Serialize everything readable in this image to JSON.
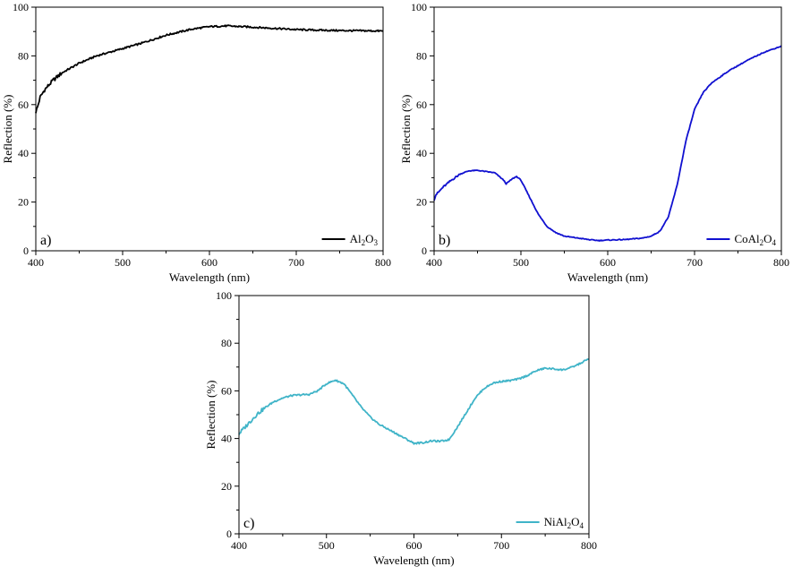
{
  "chart_data": [
    {
      "type": "line",
      "panel_label": "a)",
      "xlabel": "Wavelength (nm)",
      "ylabel": "Reflection (%)",
      "xlim": [
        400,
        800
      ],
      "ylim": [
        0,
        100
      ],
      "xticks": [
        400,
        500,
        600,
        700,
        800
      ],
      "yticks": [
        0,
        20,
        40,
        60,
        80,
        100
      ],
      "grid": false,
      "legend_position": "bottom-right",
      "series": [
        {
          "name_parts": [
            "Al",
            "2",
            "O",
            "3"
          ],
          "color": "#000000",
          "x": [
            400,
            402,
            405,
            410,
            420,
            430,
            450,
            470,
            500,
            520,
            550,
            580,
            600,
            620,
            650,
            680,
            700,
            720,
            750,
            780,
            800
          ],
          "y": [
            57,
            59,
            63,
            66,
            70,
            73,
            77,
            80,
            83,
            85,
            88.5,
            91,
            92,
            92.3,
            91.8,
            91.2,
            90.8,
            90.6,
            90.4,
            90.3,
            90.2
          ]
        }
      ]
    },
    {
      "type": "line",
      "panel_label": "b)",
      "xlabel": "Wavelength (nm)",
      "ylabel": "Reflection (%)",
      "xlim": [
        400,
        800
      ],
      "ylim": [
        0,
        100
      ],
      "xticks": [
        400,
        500,
        600,
        700,
        800
      ],
      "yticks": [
        0,
        20,
        40,
        60,
        80,
        100
      ],
      "grid": false,
      "legend_position": "bottom-right",
      "series": [
        {
          "name_parts": [
            "CoAl",
            "2",
            "O",
            "4"
          ],
          "color": "#1010d0",
          "x": [
            400,
            402,
            405,
            410,
            420,
            430,
            440,
            450,
            460,
            470,
            480,
            483,
            490,
            495,
            500,
            510,
            520,
            530,
            540,
            550,
            560,
            570,
            580,
            590,
            600,
            620,
            640,
            650,
            660,
            670,
            680,
            690,
            700,
            710,
            720,
            740,
            760,
            780,
            800
          ],
          "y": [
            21,
            23,
            24,
            26,
            29,
            31.5,
            32.8,
            33,
            32.5,
            32,
            29,
            27.5,
            29.5,
            30.5,
            29,
            22,
            15,
            10,
            7.5,
            6,
            5.5,
            5,
            4.5,
            4.2,
            4.4,
            4.6,
            5.2,
            6,
            8,
            14,
            27,
            45,
            58,
            65,
            69,
            74,
            78,
            81.5,
            84
          ]
        }
      ]
    },
    {
      "type": "line",
      "panel_label": "c)",
      "xlabel": "Wavelength (nm)",
      "ylabel": "Reflection (%)",
      "xlim": [
        400,
        800
      ],
      "ylim": [
        0,
        100
      ],
      "xticks": [
        400,
        500,
        600,
        700,
        800
      ],
      "yticks": [
        0,
        20,
        40,
        60,
        80,
        100
      ],
      "grid": false,
      "legend_position": "bottom-right",
      "series": [
        {
          "name_parts": [
            "NiAl",
            "2",
            "O",
            "4"
          ],
          "color": "#40b4c8",
          "x": [
            400,
            410,
            420,
            430,
            440,
            450,
            460,
            470,
            480,
            490,
            500,
            510,
            520,
            530,
            540,
            550,
            560,
            570,
            580,
            590,
            600,
            610,
            620,
            630,
            640,
            650,
            660,
            670,
            680,
            690,
            700,
            710,
            720,
            730,
            740,
            750,
            760,
            770,
            780,
            790,
            800
          ],
          "y": [
            42,
            46,
            50,
            53,
            55.5,
            57,
            58,
            58.3,
            58.5,
            60,
            63,
            64.5,
            63,
            58,
            53,
            49,
            46,
            44,
            42,
            40,
            38,
            38.2,
            39,
            38.8,
            39.5,
            45,
            51,
            57,
            61,
            63.2,
            64,
            64.3,
            65,
            66.5,
            68.5,
            69.5,
            69.2,
            68.8,
            69.8,
            71.5,
            73.5
          ]
        }
      ]
    }
  ]
}
